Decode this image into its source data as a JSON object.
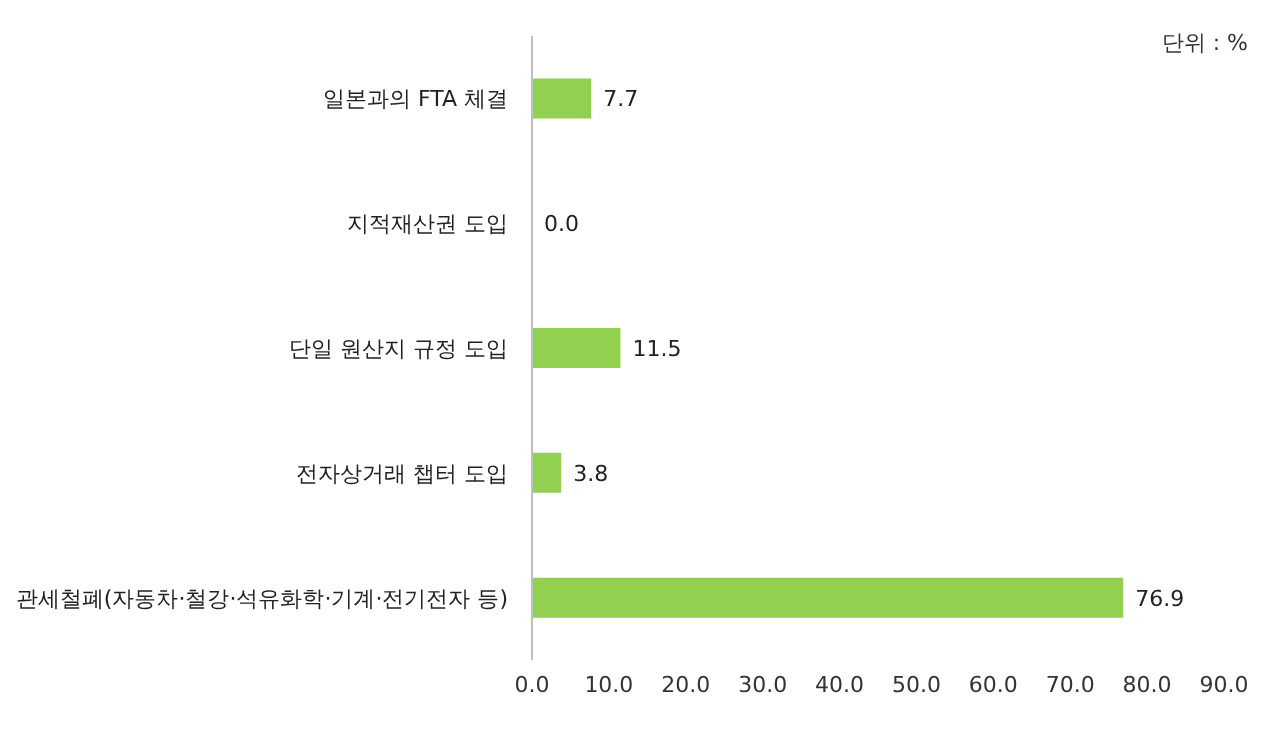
{
  "chart_data": {
    "type": "bar",
    "orientation": "horizontal",
    "categories": [
      "일본과의 FTA 체결",
      "지적재산권 도입",
      "단일 원산지 규정 도입",
      "전자상거래 챕터 도입",
      "관세철폐(자동차·철강·석유화학·기계·전기전자 등)"
    ],
    "values": [
      7.7,
      0.0,
      11.5,
      3.8,
      76.9
    ],
    "value_labels": [
      "7.7",
      "0.0",
      "11.5",
      "3.8",
      "76.9"
    ],
    "color": "#92d050",
    "xlim": [
      0,
      90
    ],
    "xticks": [
      {
        "value": 0,
        "label": "0.0"
      },
      {
        "value": 10,
        "label": "10.0"
      },
      {
        "value": 20,
        "label": "20.0"
      },
      {
        "value": 30,
        "label": "30.0"
      },
      {
        "value": 40,
        "label": "40.0"
      },
      {
        "value": 50,
        "label": "50.0"
      },
      {
        "value": 60,
        "label": "60.0"
      },
      {
        "value": 70,
        "label": "70.0"
      },
      {
        "value": 80,
        "label": "80.0"
      },
      {
        "value": 90,
        "label": "90.0"
      }
    ],
    "annotations": [
      "단위 : %"
    ],
    "grid": false
  }
}
